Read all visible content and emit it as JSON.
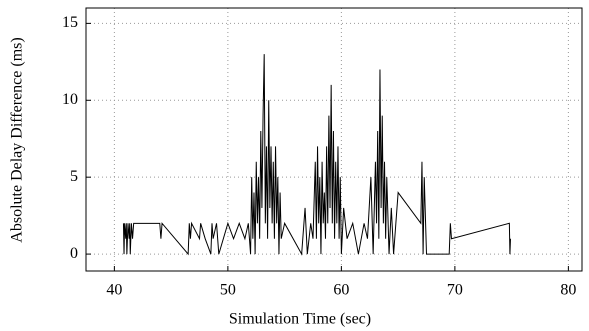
{
  "chart_data": {
    "type": "line",
    "xlabel": "Simulation Time (sec)",
    "ylabel": "Absolute Delay Difference (ms)",
    "xlim": [
      37.5,
      81.2
    ],
    "ylim": [
      -1.1,
      16
    ],
    "xticks": [
      40,
      50,
      60,
      70,
      80
    ],
    "yticks": [
      0,
      5,
      10,
      15
    ],
    "grid": true,
    "x": [
      40.8,
      40.85,
      40.9,
      41,
      41.05,
      41.1,
      41.2,
      41.3,
      41.35,
      41.4,
      41.5,
      41.6,
      41.7,
      42,
      44,
      44.1,
      44.2,
      46.5,
      46.6,
      46.7,
      46.8,
      47.5,
      47.6,
      48,
      48.5,
      48.6,
      48.7,
      49,
      49.2,
      50,
      50.5,
      51,
      51.5,
      51.8,
      52,
      52.1,
      52.2,
      52.3,
      52.4,
      52.5,
      52.6,
      52.7,
      52.8,
      52.9,
      53,
      53.1,
      53.2,
      53.3,
      53.4,
      53.5,
      53.6,
      53.7,
      53.8,
      53.9,
      54,
      54.1,
      54.2,
      54.3,
      54.4,
      54.5,
      54.6,
      54.7,
      55,
      56.5,
      56.8,
      57,
      57.3,
      57.5,
      57.7,
      57.8,
      57.9,
      58,
      58.1,
      58.2,
      58.3,
      58.4,
      58.5,
      58.6,
      58.7,
      58.8,
      58.9,
      59,
      59.1,
      59.2,
      59.3,
      59.4,
      59.5,
      59.6,
      59.7,
      59.8,
      59.9,
      60,
      60.2,
      60.5,
      61,
      61.5,
      62,
      62.3,
      62.6,
      62.8,
      63,
      63.1,
      63.2,
      63.3,
      63.4,
      63.5,
      63.6,
      63.7,
      63.8,
      63.9,
      64,
      64.2,
      64.4,
      64.6,
      64.8,
      65,
      67,
      67.1,
      67.2,
      67.3,
      67.5,
      69.5,
      69.6,
      69.7,
      74.8,
      74.85,
      74.9
    ],
    "series": [
      {
        "color": "#000000",
        "values": [
          2,
          0,
          2,
          1,
          2,
          0,
          2,
          1,
          2,
          0,
          2,
          1,
          2,
          2,
          2,
          1,
          2,
          0,
          2,
          1,
          2,
          1,
          2,
          1,
          0,
          2,
          1,
          2,
          0,
          2,
          1,
          2,
          1,
          2,
          0,
          5,
          1,
          4,
          0,
          6,
          2,
          5,
          1,
          8,
          3,
          9,
          13,
          2,
          7,
          1,
          10,
          3,
          7,
          2,
          6,
          1,
          7,
          2,
          5,
          0,
          4,
          1,
          2,
          0,
          3,
          0,
          2,
          1,
          6,
          1,
          7,
          2,
          5,
          0,
          6,
          2,
          4,
          1,
          7,
          2,
          9,
          3,
          11,
          2,
          8,
          1,
          6,
          2,
          7,
          1,
          5,
          0,
          3,
          1,
          2,
          0,
          2,
          1,
          5,
          0,
          6,
          2,
          8,
          1,
          12,
          3,
          9,
          2,
          6,
          1,
          5,
          0,
          3,
          0,
          2,
          4,
          2,
          6,
          0,
          5,
          0,
          0,
          2,
          1,
          2,
          0,
          1
        ]
      }
    ]
  }
}
